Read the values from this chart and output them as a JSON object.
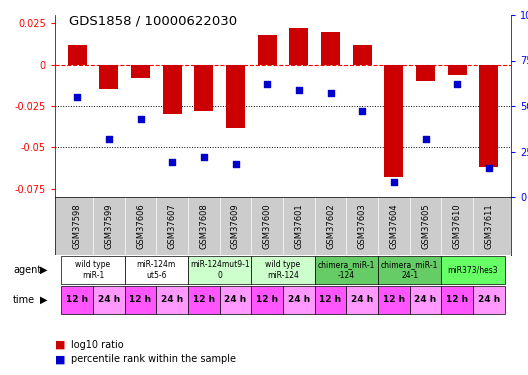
{
  "title": "GDS1858 / 10000622030",
  "samples": [
    "GSM37598",
    "GSM37599",
    "GSM37606",
    "GSM37607",
    "GSM37608",
    "GSM37609",
    "GSM37600",
    "GSM37601",
    "GSM37602",
    "GSM37603",
    "GSM37604",
    "GSM37605",
    "GSM37610",
    "GSM37611"
  ],
  "log10_ratio": [
    0.012,
    -0.015,
    -0.008,
    -0.03,
    -0.028,
    -0.038,
    0.018,
    0.022,
    0.02,
    0.012,
    -0.068,
    -0.01,
    -0.006,
    -0.062
  ],
  "percentile_rank": [
    55,
    32,
    43,
    19,
    22,
    18,
    62,
    59,
    57,
    47,
    8,
    32,
    62,
    16
  ],
  "agent_groups": [
    {
      "label": "wild type\nmiR-1",
      "start": 0,
      "end": 2,
      "color": "#ffffff"
    },
    {
      "label": "miR-124m\nut5-6",
      "start": 2,
      "end": 4,
      "color": "#ffffff"
    },
    {
      "label": "miR-124mut9-1\n0",
      "start": 4,
      "end": 6,
      "color": "#ccffcc"
    },
    {
      "label": "wild type\nmiR-124",
      "start": 6,
      "end": 8,
      "color": "#ccffcc"
    },
    {
      "label": "chimera_miR-1\n-124",
      "start": 8,
      "end": 10,
      "color": "#66cc66"
    },
    {
      "label": "chimera_miR-1\n24-1",
      "start": 10,
      "end": 12,
      "color": "#66cc66"
    },
    {
      "label": "miR373/hes3",
      "start": 12,
      "end": 14,
      "color": "#66ff66"
    }
  ],
  "time_labels": [
    "12 h",
    "24 h",
    "12 h",
    "24 h",
    "12 h",
    "24 h",
    "12 h",
    "24 h",
    "12 h",
    "24 h",
    "12 h",
    "24 h",
    "12 h",
    "24 h"
  ],
  "ylim_left": [
    -0.08,
    0.03
  ],
  "yticks_left": [
    0.025,
    0.0,
    -0.025,
    -0.05,
    -0.075
  ],
  "yticks_right_vals": [
    100,
    75,
    50,
    25,
    0
  ],
  "bar_color": "#cc0000",
  "scatter_color": "#0000cc",
  "background_color": "#ffffff",
  "sample_bg_color": "#cccccc",
  "agent_label_color": "#000000",
  "time_color_even": "#ff55ff",
  "time_color_odd": "#ff99ff",
  "legend_items": [
    {
      "color": "#cc0000",
      "label": "log10 ratio"
    },
    {
      "color": "#0000cc",
      "label": "percentile rank within the sample"
    }
  ]
}
